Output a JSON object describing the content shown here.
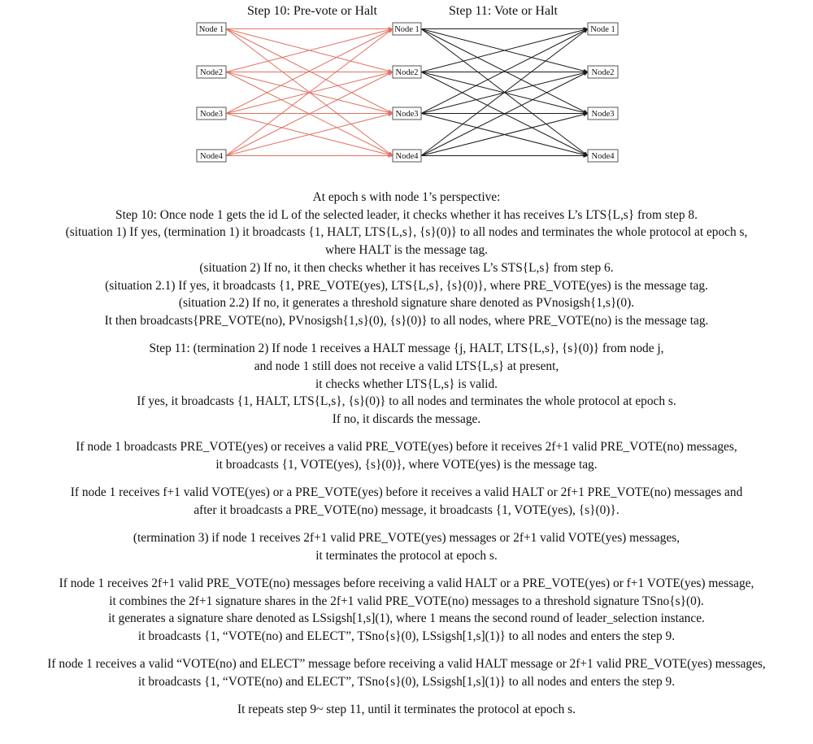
{
  "diagram": {
    "step10_title": "Step 10: Pre-vote or Halt",
    "step11_title": "Step 11: Vote or Halt",
    "columns": [
      {
        "labels": [
          "Node 1",
          "Node2",
          "Node3",
          "Node4"
        ]
      },
      {
        "labels": [
          "Node 1",
          "Node2",
          "Node3",
          "Node4"
        ]
      },
      {
        "labels": [
          "Node 1",
          "Node2",
          "Node3",
          "Node4"
        ]
      }
    ],
    "edge_colors": {
      "pre_vote": "#e07060",
      "vote": "#1a1a1a"
    }
  },
  "text": {
    "groups": [
      [
        "At epoch s with node 1’s perspective:",
        "Step 10: Once node 1 gets the id L of the selected leader, it checks whether it has receives L’s LTS{L,s} from step 8.",
        "(situation 1) If yes, (termination 1) it broadcasts {1, HALT, LTS{L,s}, {s}(0)} to all nodes and terminates the whole protocol at epoch s,",
        "where HALT is the message tag.",
        "(situation 2) If no, it then checks whether it has receives L’s  STS{L,s} from step 6.",
        "(situation 2.1) If yes, it broadcasts {1, PRE_VOTE(yes), LTS{L,s}, {s}(0)}, where PRE_VOTE(yes) is the message tag.",
        "(situation 2.2) If no, it generates a threshold signature share denoted as PVnosigsh{1,s}(0).",
        "It then broadcasts{PRE_VOTE(no), PVnosigsh{1,s}(0), {s}(0)} to all nodes, where PRE_VOTE(no) is the message tag."
      ],
      [
        "Step 11: (termination 2) If node 1 receives a HALT message {j, HALT, LTS{L,s}, {s}(0)} from node j,",
        "and node 1 still does not receive a valid LTS{L,s} at present,",
        "it checks whether LTS{L,s} is valid.",
        "If yes, it broadcasts {1, HALT, LTS{L,s}, {s}(0)} to all nodes and terminates the whole protocol at epoch s.",
        "If no, it discards the message."
      ],
      [
        "If node 1 broadcasts  PRE_VOTE(yes) or receives a valid PRE_VOTE(yes) before it receives 2f+1 valid PRE_VOTE(no) messages,",
        "it broadcasts {1, VOTE(yes), {s}(0)}, where VOTE(yes) is the message tag."
      ],
      [
        "If node 1 receives f+1 valid VOTE(yes) or a PRE_VOTE(yes) before it receives a valid HALT or 2f+1 PRE_VOTE(no) messages and",
        "after it broadcasts a PRE_VOTE(no) message, it broadcasts {1, VOTE(yes), {s}(0)}."
      ],
      [
        "(termination 3) if node 1 receives 2f+1 valid PRE_VOTE(yes) messages or 2f+1 valid VOTE(yes) messages,",
        "it terminates the protocol at epoch s."
      ],
      [
        "If node 1 receives 2f+1 valid PRE_VOTE(no) messages before receiving a valid HALT or a PRE_VOTE(yes) or f+1 VOTE(yes) message,",
        "it combines the 2f+1 signature shares in the 2f+1 valid PRE_VOTE(no) messages to a threshold signature TSno{s}(0).",
        "it generates a signature share denoted as LSsigsh[1,s](1), where 1 means the second round of leader_selection instance.",
        "it broadcasts {1, “VOTE(no) and ELECT”, TSno{s}(0), LSsigsh[1,s](1)} to all nodes and enters the step 9."
      ],
      [
        "If node 1 receives a valid “VOTE(no) and ELECT” message before receiving a valid HALT message or 2f+1 valid PRE_VOTE(yes) messages,",
        "it broadcasts {1, “VOTE(no) and ELECT”, TSno{s}(0), LSsigsh[1,s](1)} to all nodes and enters the step 9."
      ],
      [
        "It repeats step 9~ step 11, until it terminates the protocol at epoch s."
      ]
    ]
  }
}
